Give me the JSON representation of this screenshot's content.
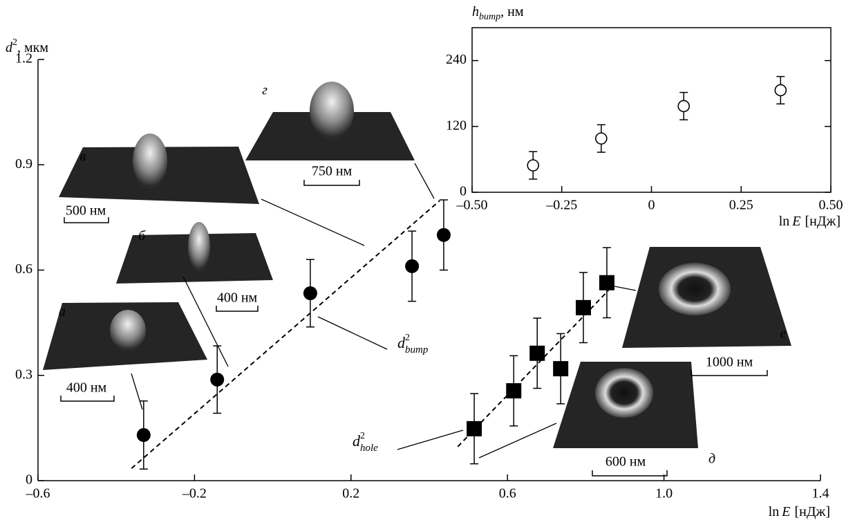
{
  "chart_data": [
    {
      "type": "scatter",
      "x_label": {
        "main": "ln",
        "var": "E",
        "unit": "[нДж]"
      },
      "y_label": {
        "main": "d",
        "sup": "2",
        "unit": ", мкм"
      },
      "xlim": [
        -0.6,
        1.4
      ],
      "xticks": [
        {
          "value": -0.6,
          "label": "–0.6"
        },
        {
          "value": -0.2,
          "label": "–0.2"
        },
        0.2,
        0.6,
        {
          "value": 1.0,
          "label": "1.0"
        },
        1.4
      ],
      "ylim": [
        0,
        1.2
      ],
      "yticks": [
        0,
        0.3,
        0.6,
        0.9,
        1.2
      ],
      "series": [
        {
          "name": {
            "main": "d",
            "sup": "2",
            "sub": "bump"
          },
          "marker": "circle",
          "color": "#000000",
          "x": [
            -0.33,
            -0.142,
            0.096,
            0.356,
            0.437
          ],
          "values": [
            0.13,
            0.288,
            0.534,
            0.611,
            0.7
          ],
          "errors": [
            0.097,
            0.096,
            0.096,
            0.1,
            0.1
          ],
          "fit": {
            "x": [
              -0.361,
              0.427
            ],
            "values": [
              0.035,
              0.798
            ]
          }
        },
        {
          "name": {
            "main": "d",
            "sup": "2",
            "sub": "hole"
          },
          "marker": "square",
          "color": "#000000",
          "x": [
            0.515,
            0.616,
            0.676,
            0.736,
            0.794,
            0.854
          ],
          "values": [
            0.148,
            0.256,
            0.363,
            0.319,
            0.493,
            0.564
          ],
          "errors": [
            0.1,
            0.1,
            0.1,
            0.1,
            0.1,
            0.1
          ],
          "fit": {
            "x": [
              0.473,
              0.858
            ],
            "values": [
              0.097,
              0.542
            ]
          }
        }
      ],
      "insets": [
        {
          "letter": "а",
          "scale": "400 нм"
        },
        {
          "letter": "б",
          "scale": "400 нм"
        },
        {
          "letter": "в",
          "scale": "500 нм"
        },
        {
          "letter": "г",
          "scale": "750 нм"
        },
        {
          "letter": "д",
          "scale": "600 нм"
        },
        {
          "letter": "е",
          "scale": "1000 нм"
        }
      ]
    },
    {
      "type": "scatter",
      "x_label": {
        "main": "ln",
        "var": "E",
        "unit": "[нДж]"
      },
      "y_label": {
        "main": "h",
        "sub": "bump",
        "unit": ", нм"
      },
      "xlim": [
        -0.5,
        0.5
      ],
      "xticks": [
        {
          "value": -0.5,
          "label": "–0.50"
        },
        {
          "value": -0.25,
          "label": "–0.25"
        },
        0,
        0.25,
        {
          "value": 0.5,
          "label": "0.50"
        }
      ],
      "ylim": [
        0,
        300
      ],
      "yticks": [
        0,
        120,
        240
      ],
      "series": [
        {
          "marker": "open-circle",
          "color": "#000000",
          "x": [
            -0.33,
            -0.14,
            0.09,
            0.36
          ],
          "values": [
            49,
            98,
            157,
            186
          ],
          "errors": [
            25,
            25,
            25,
            25
          ]
        }
      ]
    }
  ]
}
